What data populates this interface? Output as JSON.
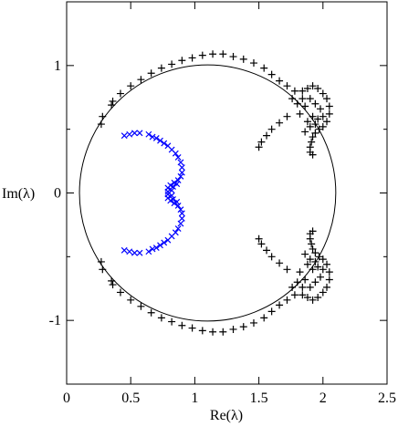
{
  "chart_data": {
    "type": "scatter",
    "title": "",
    "xlabel": "Re(λ)",
    "ylabel": "Im(λ)",
    "xlim": [
      0,
      2.5
    ],
    "ylim": [
      -1.5,
      1.5
    ],
    "x_ticks": [
      0,
      0.5,
      1,
      1.5,
      2,
      2.5
    ],
    "x_tick_labels": [
      "0",
      "0.5",
      "1",
      "1.5",
      "2",
      "2.5"
    ],
    "y_ticks": [
      -1,
      0,
      1
    ],
    "y_tick_labels": [
      "-1",
      "0",
      "1"
    ],
    "grid": false,
    "legend": "none",
    "reference_circle": {
      "center": [
        1.1,
        0
      ],
      "radius": 1.0,
      "color": "#000000"
    },
    "series": [
      {
        "marker": "plus",
        "color": "#000000",
        "points": [
          [
            0.36,
            0.72
          ],
          [
            0.42,
            0.78
          ],
          [
            0.5,
            0.84
          ],
          [
            0.58,
            0.89
          ],
          [
            0.66,
            0.94
          ],
          [
            0.74,
            0.98
          ],
          [
            0.82,
            1.01
          ],
          [
            0.9,
            1.04
          ],
          [
            0.98,
            1.06
          ],
          [
            1.06,
            1.08
          ],
          [
            1.14,
            1.09
          ],
          [
            1.22,
            1.09
          ],
          [
            1.3,
            1.07
          ],
          [
            1.38,
            1.05
          ],
          [
            1.46,
            1.02
          ],
          [
            1.54,
            0.98
          ],
          [
            1.6,
            0.93
          ],
          [
            1.66,
            0.88
          ],
          [
            1.72,
            0.84
          ],
          [
            1.78,
            0.8
          ],
          [
            1.84,
            0.8
          ],
          [
            1.88,
            0.82
          ],
          [
            1.92,
            0.84
          ],
          [
            1.96,
            0.82
          ],
          [
            2.0,
            0.78
          ],
          [
            2.03,
            0.74
          ],
          [
            2.05,
            0.68
          ],
          [
            2.05,
            0.62
          ],
          [
            2.03,
            0.56
          ],
          [
            2.0,
            0.52
          ],
          [
            1.97,
            0.5
          ],
          [
            1.94,
            0.47
          ],
          [
            1.92,
            0.44
          ],
          [
            1.91,
            0.4
          ],
          [
            1.9,
            0.36
          ],
          [
            1.9,
            0.32
          ],
          [
            1.92,
            0.3
          ],
          [
            1.82,
            0.62
          ],
          [
            1.86,
            0.68
          ],
          [
            1.9,
            0.74
          ],
          [
            1.94,
            0.7
          ],
          [
            1.98,
            0.66
          ],
          [
            1.88,
            0.56
          ],
          [
            1.92,
            0.6
          ],
          [
            1.96,
            0.58
          ],
          [
            2.0,
            0.6
          ],
          [
            1.86,
            0.48
          ],
          [
            1.9,
            0.52
          ],
          [
            1.94,
            0.54
          ],
          [
            1.8,
            0.7
          ],
          [
            1.84,
            0.74
          ],
          [
            1.76,
            0.74
          ],
          [
            1.72,
            0.6
          ],
          [
            1.66,
            0.55
          ],
          [
            1.6,
            0.5
          ],
          [
            1.56,
            0.45
          ],
          [
            1.52,
            0.4
          ],
          [
            1.5,
            0.36
          ],
          [
            0.35,
            0.69
          ],
          [
            0.28,
            0.6
          ],
          [
            0.27,
            0.54
          ],
          [
            0.36,
            -0.72
          ],
          [
            0.42,
            -0.78
          ],
          [
            0.5,
            -0.84
          ],
          [
            0.58,
            -0.89
          ],
          [
            0.66,
            -0.94
          ],
          [
            0.74,
            -0.98
          ],
          [
            0.82,
            -1.01
          ],
          [
            0.9,
            -1.04
          ],
          [
            0.98,
            -1.06
          ],
          [
            1.06,
            -1.08
          ],
          [
            1.14,
            -1.09
          ],
          [
            1.22,
            -1.09
          ],
          [
            1.3,
            -1.07
          ],
          [
            1.38,
            -1.05
          ],
          [
            1.46,
            -1.02
          ],
          [
            1.54,
            -0.98
          ],
          [
            1.6,
            -0.93
          ],
          [
            1.66,
            -0.88
          ],
          [
            1.72,
            -0.84
          ],
          [
            1.78,
            -0.8
          ],
          [
            1.84,
            -0.8
          ],
          [
            1.88,
            -0.82
          ],
          [
            1.92,
            -0.84
          ],
          [
            1.96,
            -0.82
          ],
          [
            2.0,
            -0.78
          ],
          [
            2.03,
            -0.74
          ],
          [
            2.05,
            -0.68
          ],
          [
            2.05,
            -0.62
          ],
          [
            2.03,
            -0.56
          ],
          [
            2.0,
            -0.52
          ],
          [
            1.97,
            -0.5
          ],
          [
            1.94,
            -0.47
          ],
          [
            1.92,
            -0.44
          ],
          [
            1.91,
            -0.4
          ],
          [
            1.9,
            -0.36
          ],
          [
            1.9,
            -0.32
          ],
          [
            1.92,
            -0.3
          ],
          [
            1.82,
            -0.62
          ],
          [
            1.86,
            -0.68
          ],
          [
            1.9,
            -0.74
          ],
          [
            1.94,
            -0.7
          ],
          [
            1.98,
            -0.66
          ],
          [
            1.88,
            -0.56
          ],
          [
            1.92,
            -0.6
          ],
          [
            1.96,
            -0.58
          ],
          [
            2.0,
            -0.6
          ],
          [
            1.86,
            -0.48
          ],
          [
            1.9,
            -0.52
          ],
          [
            1.94,
            -0.54
          ],
          [
            1.8,
            -0.7
          ],
          [
            1.84,
            -0.74
          ],
          [
            1.76,
            -0.74
          ],
          [
            1.72,
            -0.6
          ],
          [
            1.66,
            -0.55
          ],
          [
            1.6,
            -0.5
          ],
          [
            1.56,
            -0.45
          ],
          [
            1.52,
            -0.4
          ],
          [
            1.5,
            -0.36
          ],
          [
            0.35,
            -0.69
          ],
          [
            0.28,
            -0.6
          ],
          [
            0.27,
            -0.54
          ]
        ]
      },
      {
        "marker": "cross",
        "color": "#0000ff",
        "points": [
          [
            0.45,
            0.45
          ],
          [
            0.49,
            0.46
          ],
          [
            0.53,
            0.47
          ],
          [
            0.57,
            0.47
          ],
          [
            0.64,
            0.46
          ],
          [
            0.67,
            0.44
          ],
          [
            0.7,
            0.43
          ],
          [
            0.73,
            0.41
          ],
          [
            0.76,
            0.39
          ],
          [
            0.79,
            0.37
          ],
          [
            0.82,
            0.34
          ],
          [
            0.85,
            0.31
          ],
          [
            0.87,
            0.28
          ],
          [
            0.89,
            0.24
          ],
          [
            0.9,
            0.2
          ],
          [
            0.9,
            0.16
          ],
          [
            0.89,
            0.13
          ],
          [
            0.87,
            0.1
          ],
          [
            0.84,
            0.08
          ],
          [
            0.81,
            0.06
          ],
          [
            0.79,
            0.04
          ],
          [
            0.79,
            0.01
          ],
          [
            0.83,
            0.05
          ],
          [
            0.86,
            0.07
          ],
          [
            0.82,
            0.02
          ],
          [
            0.45,
            -0.45
          ],
          [
            0.49,
            -0.46
          ],
          [
            0.53,
            -0.47
          ],
          [
            0.57,
            -0.47
          ],
          [
            0.64,
            -0.46
          ],
          [
            0.67,
            -0.44
          ],
          [
            0.7,
            -0.43
          ],
          [
            0.73,
            -0.41
          ],
          [
            0.76,
            -0.39
          ],
          [
            0.79,
            -0.37
          ],
          [
            0.82,
            -0.34
          ],
          [
            0.85,
            -0.31
          ],
          [
            0.87,
            -0.28
          ],
          [
            0.89,
            -0.24
          ],
          [
            0.9,
            -0.2
          ],
          [
            0.9,
            -0.16
          ],
          [
            0.89,
            -0.13
          ],
          [
            0.87,
            -0.1
          ],
          [
            0.84,
            -0.08
          ],
          [
            0.81,
            -0.06
          ],
          [
            0.79,
            -0.04
          ],
          [
            0.79,
            -0.01
          ],
          [
            0.83,
            -0.05
          ],
          [
            0.86,
            -0.07
          ],
          [
            0.82,
            -0.02
          ]
        ]
      }
    ]
  }
}
